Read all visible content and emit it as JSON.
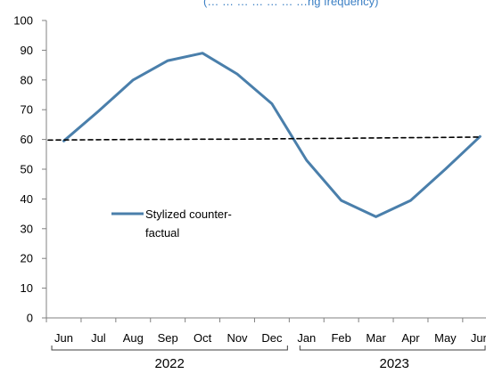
{
  "top_cut_text": "(… … … … … … …ng frequency)",
  "chart_data": {
    "type": "line",
    "title": "",
    "xlabel": "",
    "ylabel": "",
    "ylim": [
      0,
      100
    ],
    "yticks": [
      "0",
      "10",
      "20",
      "30",
      "40",
      "50",
      "60",
      "70",
      "80",
      "90",
      "100"
    ],
    "categories": [
      "Jun",
      "Jul",
      "Aug",
      "Sep",
      "Oct",
      "Nov",
      "Dec",
      "Jan",
      "Feb",
      "Mar",
      "Apr",
      "May",
      "Jun"
    ],
    "year_groups": [
      {
        "label": "2022",
        "months": [
          "Jun",
          "Jul",
          "Aug",
          "Sep",
          "Oct",
          "Nov",
          "Dec"
        ]
      },
      {
        "label": "2023",
        "months": [
          "Jan",
          "Feb",
          "Mar",
          "Apr",
          "May",
          "Jun"
        ]
      }
    ],
    "series": [
      {
        "name": "Stylized counter-factual",
        "legend_lines": [
          "Stylized counter-",
          "factual"
        ],
        "color": "#4a7fab",
        "style": "solid",
        "values": [
          59.5,
          69.5,
          80,
          86.5,
          89,
          82,
          72,
          53,
          39.5,
          34,
          39.5,
          50,
          61
        ]
      },
      {
        "name": "",
        "color": "#000000",
        "style": "dashed",
        "values": [
          59.8,
          59.9,
          60,
          60,
          60.1,
          60.1,
          60.2,
          60.3,
          60.4,
          60.5,
          60.6,
          60.7,
          60.8
        ]
      }
    ],
    "grid": false,
    "legend_position": "left-middle"
  }
}
